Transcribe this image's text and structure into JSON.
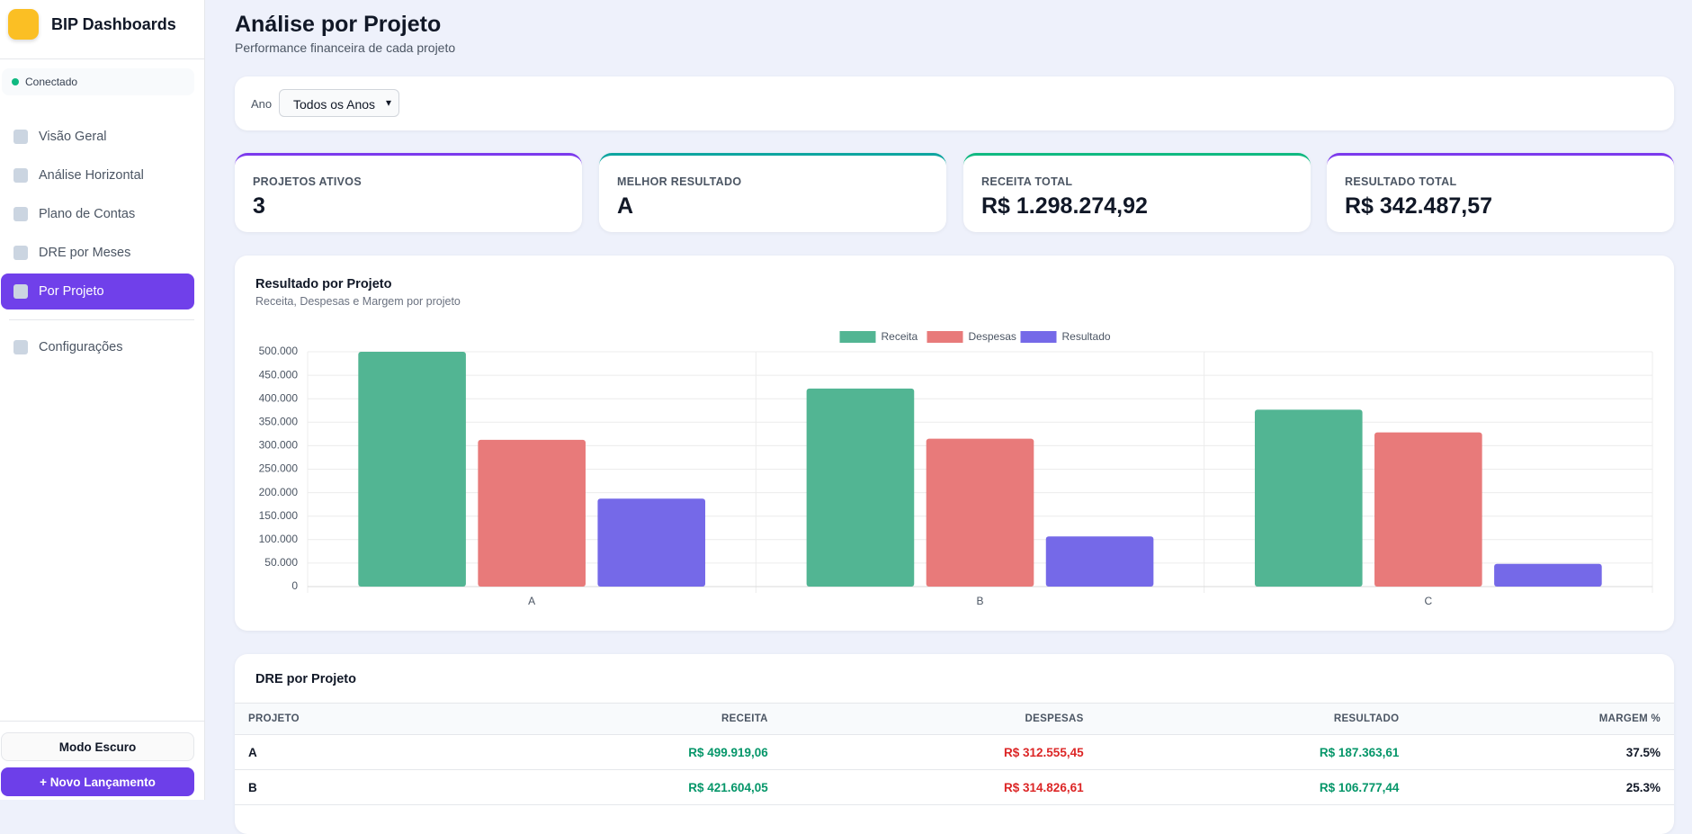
{
  "sidebar": {
    "brand": "BIP Dashboards",
    "status": "Conectado",
    "nav": [
      "Visão Geral",
      "Análise Horizontal",
      "Plano de Contas",
      "DRE por Meses",
      "Por Projeto"
    ],
    "settings": "Configurações",
    "dark_mode": "Modo Escuro",
    "new_entry": "+ Novo Lançamento"
  },
  "header": {
    "title": "Análise por Projeto",
    "subtitle": "Performance financeira de cada projeto"
  },
  "filter": {
    "label": "Ano",
    "selected": "Todos os Anos"
  },
  "kpis": [
    {
      "label": "PROJETOS ATIVOS",
      "value": "3"
    },
    {
      "label": "MELHOR RESULTADO",
      "value": "A"
    },
    {
      "label": "RECEITA TOTAL",
      "value": "R$ 1.298.274,92"
    },
    {
      "label": "RESULTADO TOTAL",
      "value": "R$ 342.487,57"
    }
  ],
  "chart_data": {
    "type": "bar",
    "title": "Resultado por Projeto",
    "subtitle": "Receita, Despesas e Margem por projeto",
    "categories": [
      "A",
      "B",
      "C"
    ],
    "series": [
      {
        "name": "Receita",
        "color": "#52b593",
        "values": [
          499919.06,
          421604.05,
          376751.81
        ]
      },
      {
        "name": "Despesas",
        "color": "#e87a7a",
        "values": [
          312555.45,
          314826.61,
          328405.29
        ]
      },
      {
        "name": "Resultado",
        "color": "#7569e8",
        "values": [
          187363.61,
          106777.44,
          48346.52
        ]
      }
    ],
    "ylim": [
      0,
      500000
    ],
    "yticks": [
      0,
      {
        "value": 50000,
        "label": "50.000"
      },
      {
        "value": 100000,
        "label": "100.000"
      },
      {
        "value": 150000,
        "label": "150.000"
      },
      {
        "value": 200000,
        "label": "200.000"
      },
      {
        "value": 250000,
        "label": "250.000"
      },
      {
        "value": 300000,
        "label": "300.000"
      },
      {
        "value": 350000,
        "label": "350.000"
      },
      {
        "value": 400000,
        "label": "400.000"
      },
      {
        "value": 450000,
        "label": "450.000"
      },
      {
        "value": 500000,
        "label": "500.000"
      }
    ],
    "grid": true,
    "legend": "top"
  },
  "table": {
    "title": "DRE por Projeto",
    "columns": [
      "PROJETO",
      "RECEITA",
      "DESPESAS",
      "RESULTADO",
      "MARGEM %"
    ],
    "rows": [
      [
        "A",
        "R$ 499.919,06",
        "R$ 312.555,45",
        "R$ 187.363,61",
        "37.5%"
      ],
      [
        "B",
        "R$ 421.604,05",
        "R$ 314.826,61",
        "R$ 106.777,44",
        "25.3%"
      ]
    ]
  }
}
